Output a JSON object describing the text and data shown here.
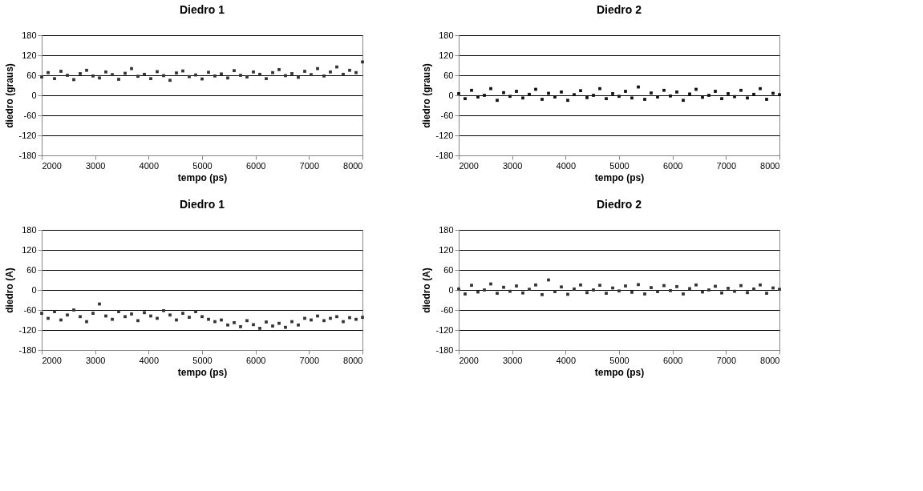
{
  "chart_data": [
    {
      "type": "scatter",
      "title": "Diedro 1",
      "xlabel": "tempo (ps)",
      "ylabel": "diedro (graus)",
      "marker": "square",
      "grid": "y",
      "xlim": [
        2000,
        8000
      ],
      "xticks": [
        2000,
        3000,
        4000,
        5000,
        6000,
        7000,
        8000
      ],
      "ylim": [
        -180,
        180
      ],
      "yticks": [
        -180,
        -120,
        -60,
        0,
        60,
        120,
        180
      ],
      "x": [
        2000,
        2120,
        2240,
        2360,
        2480,
        2600,
        2720,
        2840,
        2960,
        3080,
        3200,
        3320,
        3440,
        3560,
        3680,
        3800,
        3920,
        4040,
        4160,
        4280,
        4400,
        4520,
        4640,
        4760,
        4880,
        5000,
        5120,
        5240,
        5360,
        5480,
        5600,
        5720,
        5840,
        5960,
        6080,
        6200,
        6320,
        6440,
        6560,
        6680,
        6800,
        6920,
        7040,
        7160,
        7280,
        7400,
        7520,
        7640,
        7760,
        7880,
        8000
      ],
      "series": [
        {
          "color": "#333333",
          "values": [
            55,
            68,
            50,
            72,
            60,
            47,
            65,
            75,
            58,
            52,
            70,
            62,
            48,
            66,
            80,
            57,
            63,
            50,
            71,
            59,
            45,
            67,
            73,
            56,
            61,
            49,
            69,
            58,
            64,
            52,
            74,
            60,
            55,
            70,
            63,
            50,
            68,
            77,
            59,
            65,
            54,
            72,
            62,
            80,
            58,
            70,
            85,
            63,
            75,
            68,
            100
          ]
        }
      ]
    },
    {
      "type": "scatter",
      "title": "Diedro 2",
      "xlabel": "tempo (ps)",
      "ylabel": "diedro (graus)",
      "marker": "square",
      "grid": "y",
      "xlim": [
        2000,
        8000
      ],
      "xticks": [
        2000,
        3000,
        4000,
        5000,
        6000,
        7000,
        8000
      ],
      "ylim": [
        -180,
        180
      ],
      "yticks": [
        -180,
        -120,
        -60,
        0,
        60,
        120,
        180
      ],
      "x": [
        2000,
        2120,
        2240,
        2360,
        2480,
        2600,
        2720,
        2840,
        2960,
        3080,
        3200,
        3320,
        3440,
        3560,
        3680,
        3800,
        3920,
        4040,
        4160,
        4280,
        4400,
        4520,
        4640,
        4760,
        4880,
        5000,
        5120,
        5240,
        5360,
        5480,
        5600,
        5720,
        5840,
        5960,
        6080,
        6200,
        6320,
        6440,
        6560,
        6680,
        6800,
        6920,
        7040,
        7160,
        7280,
        7400,
        7520,
        7640,
        7760,
        7880,
        8000
      ],
      "series": [
        {
          "color": "#111111",
          "values": [
            5,
            -10,
            15,
            -5,
            0,
            20,
            -15,
            8,
            -3,
            12,
            -8,
            3,
            18,
            -12,
            6,
            -5,
            10,
            -15,
            2,
            14,
            -7,
            0,
            20,
            -10,
            5,
            -3,
            12,
            -8,
            25,
            -12,
            7,
            -5,
            15,
            -2,
            10,
            -15,
            4,
            18,
            -6,
            0,
            12,
            -10,
            5,
            -4,
            15,
            -8,
            3,
            20,
            -12,
            6,
            2
          ]
        }
      ]
    },
    {
      "type": "scatter",
      "title": "Diedro 1",
      "xlabel": "tempo (ps)",
      "ylabel": "diedro (A)",
      "marker": "square",
      "grid": "y",
      "xlim": [
        2000,
        8000
      ],
      "xticks": [
        2000,
        3000,
        4000,
        5000,
        6000,
        7000,
        8000
      ],
      "ylim": [
        -180,
        180
      ],
      "yticks": [
        -180,
        -120,
        -60,
        0,
        60,
        120,
        180
      ],
      "x": [
        2000,
        2120,
        2240,
        2360,
        2480,
        2600,
        2720,
        2840,
        2960,
        3080,
        3200,
        3320,
        3440,
        3560,
        3680,
        3800,
        3920,
        4040,
        4160,
        4280,
        4400,
        4520,
        4640,
        4760,
        4880,
        5000,
        5120,
        5240,
        5360,
        5480,
        5600,
        5720,
        5840,
        5960,
        6080,
        6200,
        6320,
        6440,
        6560,
        6680,
        6800,
        6920,
        7040,
        7160,
        7280,
        7400,
        7520,
        7640,
        7760,
        7880,
        8000
      ],
      "series": [
        {
          "color": "#333333",
          "values": [
            -70,
            -85,
            -65,
            -90,
            -75,
            -60,
            -80,
            -95,
            -70,
            -42,
            -78,
            -88,
            -65,
            -80,
            -72,
            -92,
            -68,
            -78,
            -85,
            -62,
            -75,
            -90,
            -70,
            -82,
            -65,
            -80,
            -88,
            -95,
            -90,
            -105,
            -98,
            -110,
            -92,
            -104,
            -115,
            -96,
            -108,
            -100,
            -112,
            -95,
            -105,
            -85,
            -90,
            -78,
            -92,
            -85,
            -80,
            -95,
            -83,
            -88,
            -82
          ]
        }
      ]
    },
    {
      "type": "scatter",
      "title": "Diedro 2",
      "xlabel": "tempo (ps)",
      "ylabel": "diedro (A)",
      "marker": "square",
      "grid": "y",
      "xlim": [
        2000,
        8000
      ],
      "xticks": [
        2000,
        3000,
        4000,
        5000,
        6000,
        7000,
        8000
      ],
      "ylim": [
        -180,
        180
      ],
      "yticks": [
        -180,
        -120,
        -60,
        0,
        60,
        120,
        180
      ],
      "x": [
        2000,
        2120,
        2240,
        2360,
        2480,
        2600,
        2720,
        2840,
        2960,
        3080,
        3200,
        3320,
        3440,
        3560,
        3680,
        3800,
        3920,
        4040,
        4160,
        4280,
        4400,
        4520,
        4640,
        4760,
        4880,
        5000,
        5120,
        5240,
        5360,
        5480,
        5600,
        5720,
        5840,
        5960,
        6080,
        6200,
        6320,
        6440,
        6560,
        6680,
        6800,
        6920,
        7040,
        7160,
        7280,
        7400,
        7520,
        7640,
        7760,
        7880,
        8000
      ],
      "series": [
        {
          "color": "#333333",
          "values": [
            3,
            -12,
            14,
            -6,
            0,
            18,
            -10,
            8,
            -4,
            12,
            -9,
            2,
            15,
            -14,
            30,
            -5,
            9,
            -13,
            3,
            15,
            -8,
            0,
            14,
            -10,
            6,
            -3,
            12,
            -7,
            16,
            -12,
            7,
            -5,
            13,
            -2,
            10,
            -12,
            4,
            15,
            -6,
            0,
            11,
            -9,
            5,
            -4,
            13,
            -8,
            3,
            15,
            -10,
            6,
            2
          ]
        }
      ]
    }
  ]
}
